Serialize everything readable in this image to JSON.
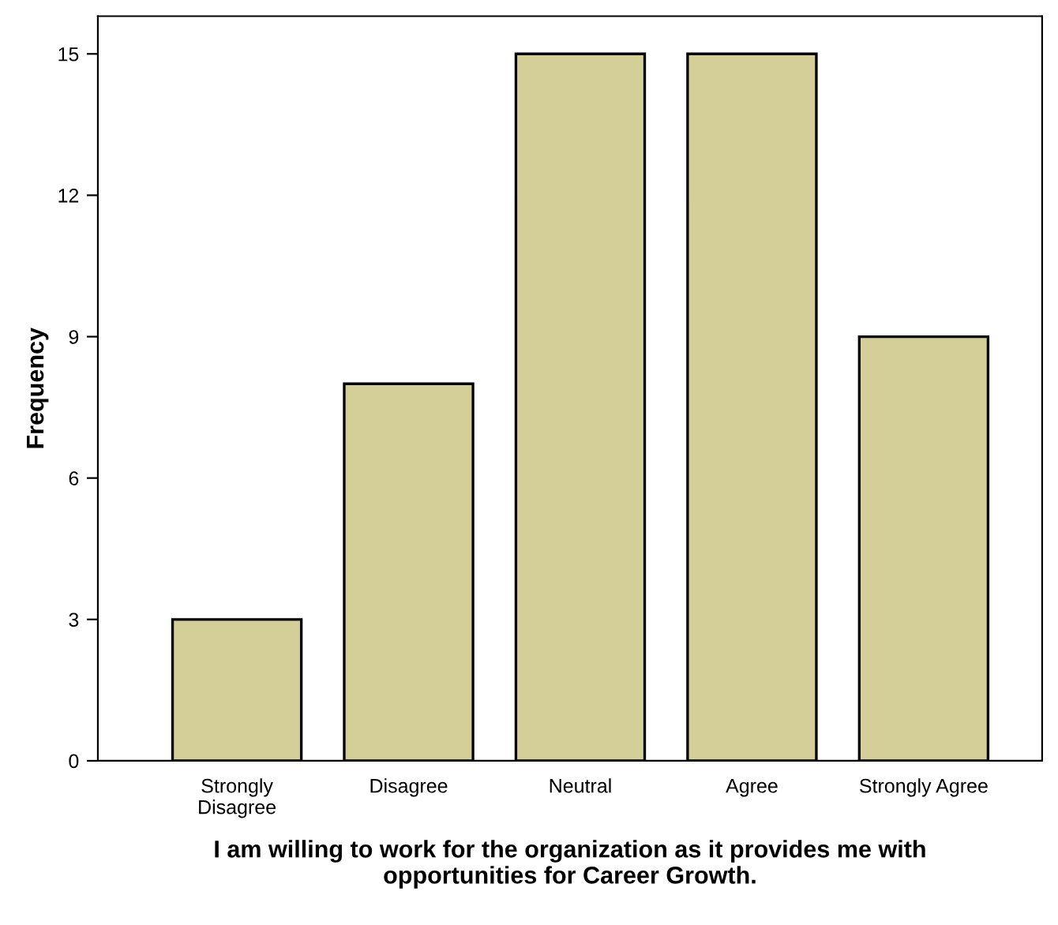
{
  "chart_data": {
    "type": "bar",
    "xlabel": "I am willing to work for the organization as it provides me with\nopportunities for Career Growth.",
    "ylabel": "Frequency",
    "categories": [
      "Strongly\nDisagree",
      "Disagree",
      "Neutral",
      "Agree",
      "Strongly Agree"
    ],
    "values": [
      3,
      8,
      15,
      15,
      9
    ],
    "color": "#d4cf99",
    "ylim": [
      0,
      15.8
    ],
    "yticks": [
      0,
      3,
      6,
      9,
      12,
      15
    ],
    "grid": false,
    "legend": false
  }
}
